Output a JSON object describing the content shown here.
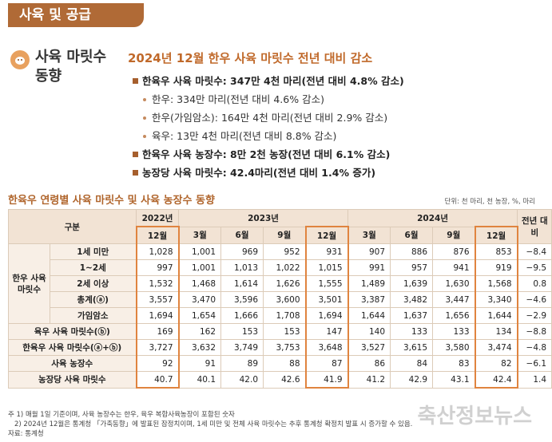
{
  "header": {
    "tag": "사육 및 공급",
    "section_title_lines": [
      "사육 마릿수",
      "동향"
    ]
  },
  "headline": "2024년 12월 한우 사육 마릿수 전년 대비 감소",
  "bullets": [
    {
      "text": "한육우 사육 마릿수: 347만 4천 마리(전년 대비 4.8% 감소)",
      "sub": [
        "한우: 334만 마리(전년 대비 4.6% 감소)",
        "한우(가임암소): 164만 4천 마리(전년 대비 2.9% 감소)",
        "육우: 13만 4천 마리(전년 대비 8.8% 감소)"
      ]
    },
    {
      "text": "한육우 사육 농장수: 8만 2천 농장(전년 대비 6.1% 감소)",
      "sub": []
    },
    {
      "text": "농장당 사육 마릿수: 42.4마리(전년 대비 1.4% 증가)",
      "sub": []
    }
  ],
  "table": {
    "title": "한육우 연령별 사육 마릿수 및 사육 농장수 동향",
    "unit": "단위: 천 마리, 천 농장, %, 마리",
    "header": {
      "label": "구분",
      "years": [
        {
          "year": "2022년",
          "months": [
            "12월"
          ]
        },
        {
          "year": "2023년",
          "months": [
            "3월",
            "6월",
            "9월",
            "12월"
          ]
        },
        {
          "year": "2024년",
          "months": [
            "3월",
            "6월",
            "9월",
            "12월"
          ]
        }
      ],
      "change": "전년 대비"
    },
    "highlight_columns": [
      0,
      4,
      8
    ],
    "rows": [
      {
        "group": "한우 사육 마릿수",
        "label": "1세 미만",
        "values": [
          "1,028",
          "1,001",
          "969",
          "952",
          "931",
          "907",
          "886",
          "876",
          "853",
          "−8.4"
        ]
      },
      {
        "group": "한우 사육 마릿수",
        "label": "1~2세",
        "values": [
          "997",
          "1,001",
          "1,013",
          "1,022",
          "1,015",
          "991",
          "957",
          "941",
          "919",
          "−9.5"
        ]
      },
      {
        "group": "한우 사육 마릿수",
        "label": "2세 이상",
        "values": [
          "1,532",
          "1,468",
          "1,614",
          "1,626",
          "1,555",
          "1,489",
          "1,639",
          "1,630",
          "1,568",
          "0.8"
        ]
      },
      {
        "group": "한우 사육 마릿수",
        "label": "총계(ⓐ)",
        "values": [
          "3,557",
          "3,470",
          "3,596",
          "3,600",
          "3,501",
          "3,387",
          "3,482",
          "3,447",
          "3,340",
          "−4.6"
        ]
      },
      {
        "group": "한우 사육 마릿수",
        "label": "가임암소",
        "values": [
          "1,694",
          "1,654",
          "1,666",
          "1,708",
          "1,694",
          "1,644",
          "1,637",
          "1,656",
          "1,644",
          "−2.9"
        ]
      },
      {
        "label": "육우 사육 마릿수(ⓑ)",
        "values": [
          "169",
          "162",
          "153",
          "153",
          "147",
          "140",
          "133",
          "133",
          "134",
          "−8.8"
        ]
      },
      {
        "label": "한육우 사육 마릿수(ⓐ+ⓑ)",
        "values": [
          "3,727",
          "3,632",
          "3,749",
          "3,753",
          "3,648",
          "3,527",
          "3,615",
          "3,580",
          "3,474",
          "−4.8"
        ]
      },
      {
        "label": "사육 농장수",
        "values": [
          "92",
          "91",
          "89",
          "88",
          "87",
          "86",
          "84",
          "83",
          "82",
          "−6.1"
        ]
      },
      {
        "label": "농장당 사육 마릿수",
        "values": [
          "40.7",
          "40.1",
          "42.0",
          "42.6",
          "41.9",
          "41.2",
          "42.9",
          "43.1",
          "42.4",
          "1.4"
        ]
      }
    ]
  },
  "notes": [
    "주  1) 매월 1일 기준이며, 사육 농장수는 한우, 육우 복합사육농장이 포함된 숫자",
    "2) 2024년 12월은 통계청 「가축동향」에 발표된 잠정치이며, 1세 미만 및 전체 사육 마릿수는 추후 통계청 확정치 발표 시 증가할 수 있음."
  ],
  "source": "자료: 통계청",
  "watermark": "축산정보뉴스"
}
